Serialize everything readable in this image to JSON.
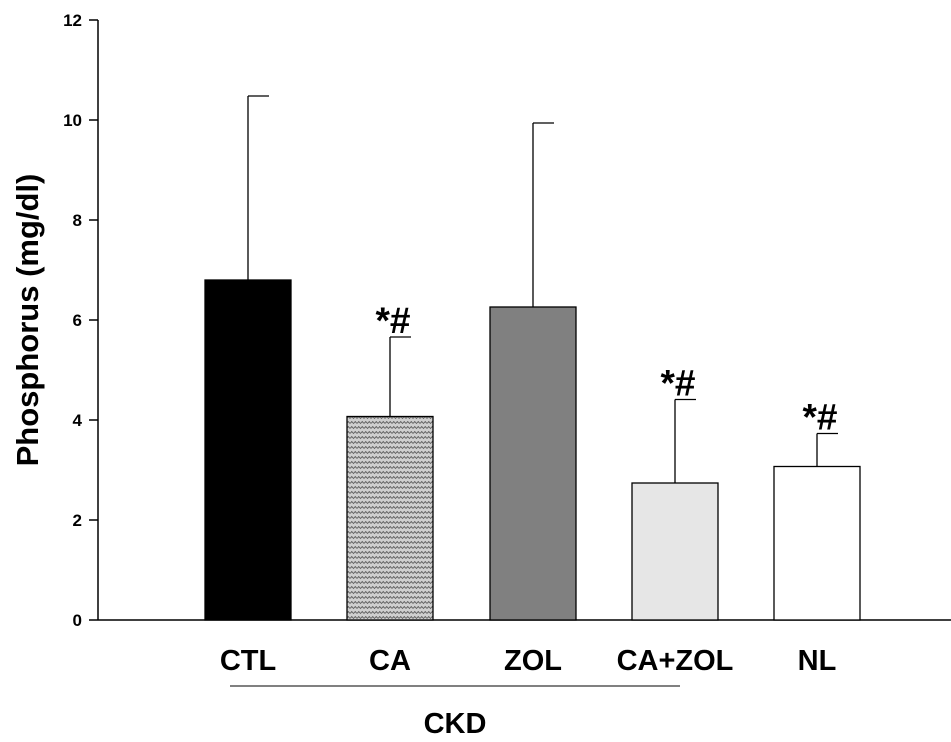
{
  "chart_data": {
    "type": "bar",
    "title": "",
    "xlabel": "",
    "ylabel": "Phosphorus (mg/dl)",
    "ylim": [
      0,
      12
    ],
    "yticks": [
      0,
      2,
      4,
      6,
      8,
      10,
      12
    ],
    "categories": [
      "CTL",
      "CA",
      "ZOL",
      "CA+ZOL",
      "NL"
    ],
    "values": [
      6.8,
      4.07,
      6.26,
      2.74,
      3.07
    ],
    "error_upper": [
      10.48,
      5.66,
      9.94,
      4.41,
      3.73
    ],
    "annotations": [
      "",
      "*#",
      "",
      "*#",
      "*#"
    ],
    "bar_fills": [
      "#000000",
      "#b8b8b8",
      "#808080",
      "#e6e6e6",
      "#ffffff"
    ],
    "bar_patterns": [
      "solid",
      "zigzag",
      "solid",
      "solid",
      "solid"
    ],
    "group_label": "CKD",
    "group_members": [
      "CTL",
      "CA",
      "ZOL",
      "CA+ZOL"
    ],
    "grid": false,
    "legend": "none"
  }
}
